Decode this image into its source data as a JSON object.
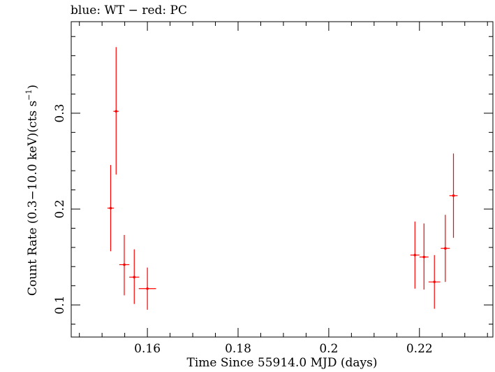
{
  "chart_data": {
    "type": "scatter",
    "title": "blue: WT − red: PC",
    "xlabel": "Time Since 55914.0 MJD (days)",
    "ylabel": "Count Rate (0.3−10.0 keV)(cts s",
    "ylabel_sup": "−1",
    "ylabel_end": ")",
    "xlim": [
      0.1432,
      0.2362
    ],
    "ylim": [
      0.0665,
      0.3955
    ],
    "xticks": [
      0.16,
      0.18,
      0.2,
      0.22
    ],
    "xtick_labels": [
      "0.16",
      "0.18",
      "0.2",
      "0.22"
    ],
    "yticks": [
      0.1,
      0.2,
      0.3
    ],
    "ytick_labels": [
      "0.1",
      "0.2",
      "0.3"
    ],
    "grid": false,
    "series": [
      {
        "name": "PC",
        "color": "#ff0000",
        "points": [
          {
            "x": 0.1519,
            "xerr": 0.0007,
            "y": 0.201,
            "ylo": 0.156,
            "yhi": 0.246
          },
          {
            "x": 0.1531,
            "xerr": 0.0006,
            "y": 0.302,
            "ylo": 0.236,
            "yhi": 0.369
          },
          {
            "x": 0.1549,
            "xerr": 0.0011,
            "y": 0.142,
            "ylo": 0.11,
            "yhi": 0.173
          },
          {
            "x": 0.1571,
            "xerr": 0.0011,
            "y": 0.129,
            "ylo": 0.101,
            "yhi": 0.158
          },
          {
            "x": 0.16,
            "xerr": 0.0019,
            "y": 0.117,
            "ylo": 0.095,
            "yhi": 0.139
          },
          {
            "x": 0.219,
            "xerr": 0.001,
            "y": 0.152,
            "ylo": 0.117,
            "yhi": 0.187
          },
          {
            "x": 0.221,
            "xerr": 0.001,
            "y": 0.15,
            "ylo": 0.116,
            "yhi": 0.185
          },
          {
            "x": 0.2233,
            "xerr": 0.0013,
            "y": 0.124,
            "ylo": 0.096,
            "yhi": 0.152
          },
          {
            "x": 0.2257,
            "xerr": 0.001,
            "y": 0.159,
            "ylo": 0.124,
            "yhi": 0.194
          },
          {
            "x": 0.2275,
            "xerr": 0.0009,
            "y": 0.214,
            "ylo": 0.17,
            "yhi": 0.258
          }
        ]
      }
    ]
  }
}
